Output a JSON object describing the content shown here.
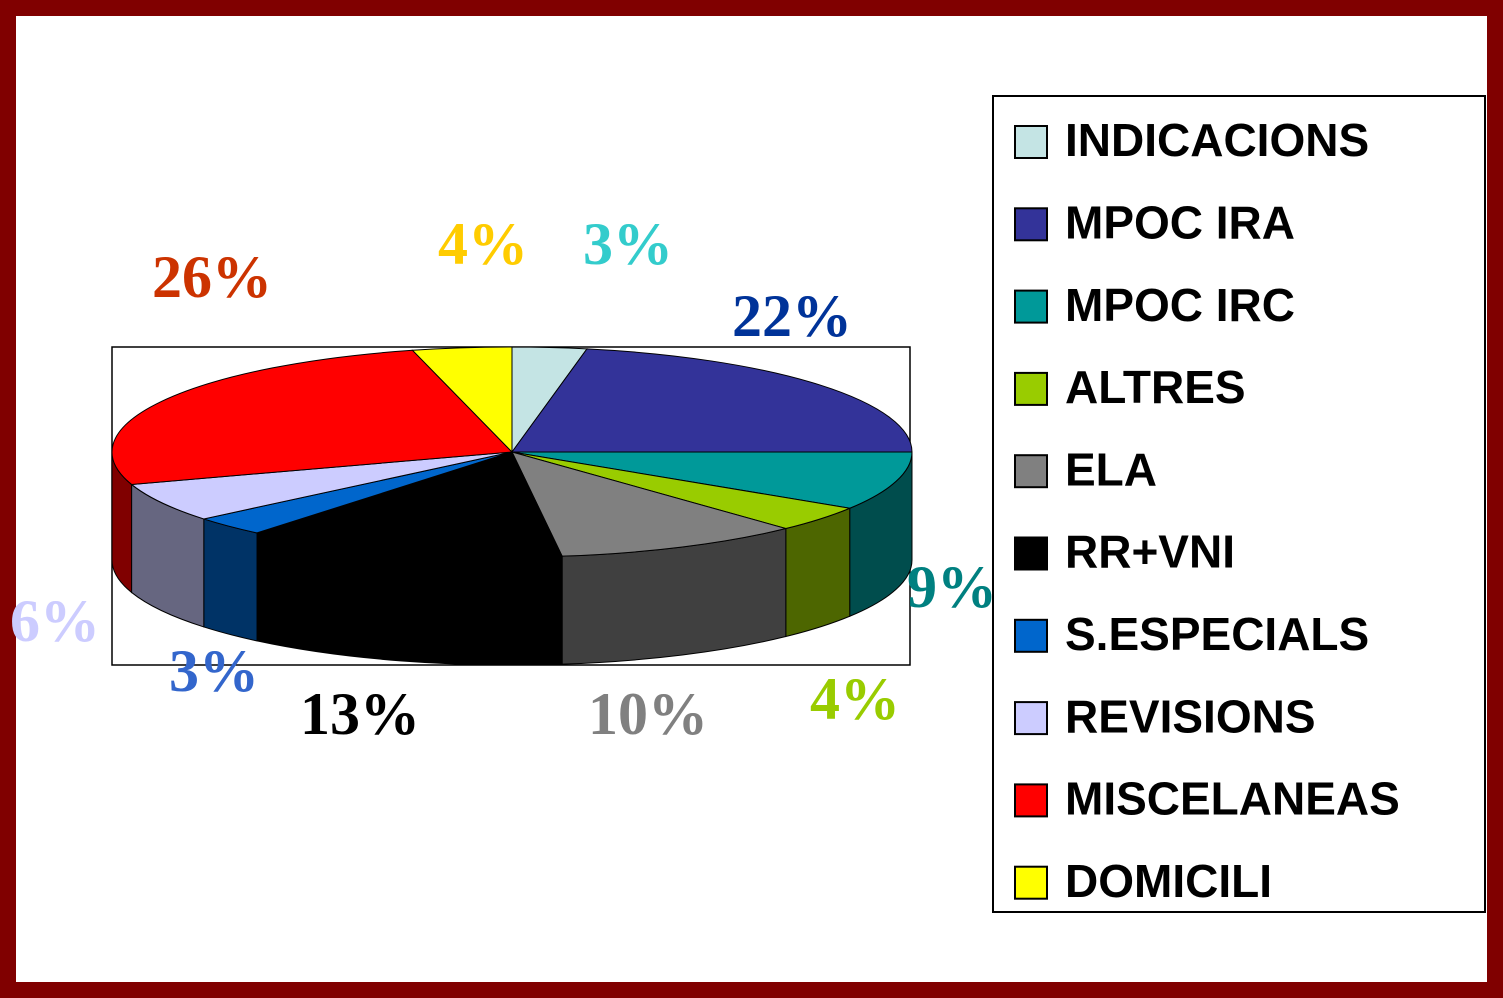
{
  "chart_data": {
    "type": "pie3d",
    "categories": [
      "INDICACIONS",
      "MPOC  IRA",
      "MPOC IRC",
      "ALTRES",
      "ELA",
      "RR+VNI",
      "S.ESPECIALS",
      "REVISIONS",
      "MISCELANEAS",
      "DOMICILI"
    ],
    "values": [
      3,
      22,
      9,
      4,
      10,
      13,
      3,
      6,
      26,
      4
    ],
    "value_labels": [
      "3%",
      "22%",
      "9%",
      "4%",
      "10%",
      "13%",
      "3%",
      "6%",
      "26%",
      "4%"
    ],
    "colors": [
      "#c4e4e4",
      "#333399",
      "#009999",
      "#99cc00",
      "#808080",
      "#000000",
      "#0066cc",
      "#ccccff",
      "#ff0000",
      "#ffff00"
    ],
    "label_colors": [
      "#33cccc",
      "#003399",
      "#008080",
      "#99cc00",
      "#808080",
      "#000000",
      "#3366cc",
      "#ccccff",
      "#cc3300",
      "#ffcc00"
    ],
    "legend": "right"
  }
}
